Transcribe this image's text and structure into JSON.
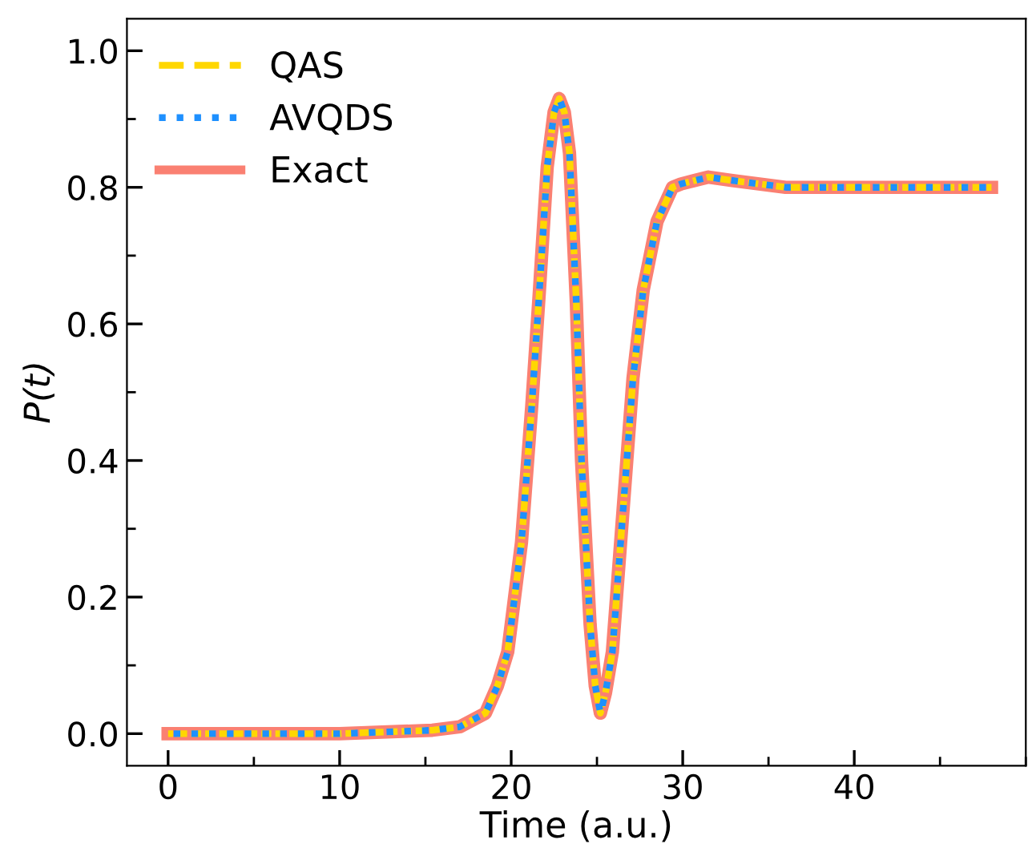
{
  "chart_data": {
    "type": "line",
    "xlabel": "Time (a.u.)",
    "ylabel": "P(t)",
    "xlim": [
      -2.4,
      50.0
    ],
    "ylim": [
      -0.047,
      1.047
    ],
    "xticks": [
      0,
      10,
      20,
      30,
      40
    ],
    "yticks": [
      {
        "value": 0,
        "label": "0.0"
      },
      {
        "value": 0.2,
        "label": "0.2"
      },
      {
        "value": 0.4,
        "label": "0.4"
      },
      {
        "value": 0.6,
        "label": "0.6"
      },
      {
        "value": 0.8,
        "label": "0.8"
      },
      {
        "value": 1.0,
        "label": "1.0"
      }
    ],
    "x": [
      0,
      5,
      10,
      15.4,
      17,
      18.5,
      19.2,
      19.8,
      20.6,
      21.2,
      21.65,
      22.1,
      22.5,
      22.8,
      23.1,
      23.4,
      23.8,
      24.1,
      24.6,
      24.9,
      25.2,
      25.5,
      25.9,
      26.5,
      27.1,
      27.7,
      28.5,
      29.4,
      29.9,
      30.7,
      31.5,
      32.9,
      36,
      40,
      44,
      48
    ],
    "legend": "top left",
    "grid": false,
    "series": [
      {
        "name": "QAS",
        "color": "#ffd700",
        "line_style": "dashed",
        "values": [
          0,
          0,
          0,
          0.005,
          0.01,
          0.03,
          0.07,
          0.12,
          0.28,
          0.48,
          0.65,
          0.83,
          0.91,
          0.93,
          0.91,
          0.85,
          0.63,
          0.4,
          0.16,
          0.07,
          0.03,
          0.06,
          0.12,
          0.32,
          0.52,
          0.65,
          0.75,
          0.8,
          0.805,
          0.81,
          0.815,
          0.81,
          0.8,
          0.8,
          0.8,
          0.8
        ]
      },
      {
        "name": "AVQDS",
        "color": "#1e90ff",
        "line_style": "dotted",
        "values": [
          0,
          0,
          0,
          0.005,
          0.01,
          0.03,
          0.07,
          0.12,
          0.28,
          0.48,
          0.65,
          0.83,
          0.91,
          0.93,
          0.91,
          0.85,
          0.63,
          0.4,
          0.16,
          0.07,
          0.03,
          0.06,
          0.12,
          0.32,
          0.52,
          0.65,
          0.75,
          0.8,
          0.805,
          0.81,
          0.815,
          0.81,
          0.8,
          0.8,
          0.8,
          0.8
        ]
      },
      {
        "name": "Exact",
        "color": "#fa8072",
        "line_style": "solid",
        "values": [
          0,
          0,
          0,
          0.005,
          0.01,
          0.03,
          0.07,
          0.12,
          0.28,
          0.48,
          0.65,
          0.83,
          0.91,
          0.93,
          0.91,
          0.85,
          0.63,
          0.4,
          0.16,
          0.07,
          0.03,
          0.06,
          0.12,
          0.32,
          0.52,
          0.65,
          0.75,
          0.8,
          0.805,
          0.81,
          0.815,
          0.81,
          0.8,
          0.8,
          0.8,
          0.8
        ]
      }
    ]
  }
}
